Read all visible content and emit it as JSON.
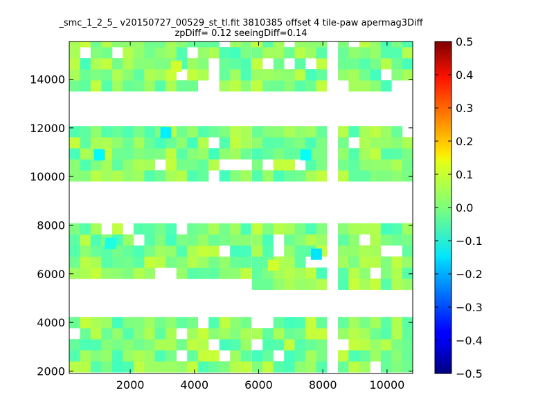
{
  "chart_data": {
    "type": "heatmap",
    "title": "_smc_1_2_5_ v20150727_00529_st_tl.fit 3810385 offset 4 tile-paw apermag3Diff",
    "subtitle": "zpDiff= 0.12 seeingDiff=0.14",
    "xlabel": "",
    "ylabel": "",
    "xlim": [
      100,
      10800
    ],
    "ylim": [
      1900,
      15550
    ],
    "xticks": [
      "2000",
      "4000",
      "6000",
      "8000",
      "10000"
    ],
    "yticks": [
      "2000",
      "4000",
      "6000",
      "8000",
      "10000",
      "12000",
      "14000"
    ],
    "x_tick_values": [
      2000,
      4000,
      6000,
      8000,
      10000
    ],
    "y_tick_values": [
      2000,
      4000,
      6000,
      8000,
      10000,
      12000,
      14000
    ],
    "colorbar": {
      "ticks": [
        "0.5",
        "0.4",
        "0.3",
        "0.2",
        "0.1",
        "0.0",
        "−0.1",
        "−0.2",
        "−0.3",
        "−0.4",
        "−0.5"
      ],
      "tick_values": [
        0.5,
        0.4,
        0.3,
        0.2,
        0.1,
        0.0,
        -0.1,
        -0.2,
        -0.3,
        -0.4,
        -0.5
      ],
      "range": [
        -0.5,
        0.5
      ],
      "colormap": "jet"
    },
    "cell": {
      "dx": 334,
      "dy": 455
    },
    "clusters": [
      {
        "x0": 100,
        "y0": 13500,
        "cols": 8,
        "rows": 5,
        "seed": 1
      },
      {
        "x0": 2770,
        "y0": 13500,
        "cols": 9,
        "rows": 5,
        "seed": 2
      },
      {
        "x0": 5790,
        "y0": 13500,
        "cols": 7,
        "rows": 5,
        "seed": 3
      },
      {
        "x0": 8470,
        "y0": 13500,
        "cols": 7,
        "rows": 5,
        "seed": 4
      },
      {
        "x0": 100,
        "y0": 9800,
        "cols": 8,
        "rows": 5,
        "seed": 5
      },
      {
        "x0": 2770,
        "y0": 9800,
        "cols": 9,
        "rows": 5,
        "seed": 6
      },
      {
        "x0": 5790,
        "y0": 9800,
        "cols": 7,
        "rows": 5,
        "seed": 7
      },
      {
        "x0": 8470,
        "y0": 9800,
        "cols": 7,
        "rows": 5,
        "seed": 8
      },
      {
        "x0": 100,
        "y0": 5800,
        "cols": 8,
        "rows": 5,
        "seed": 9
      },
      {
        "x0": 2770,
        "y0": 5800,
        "cols": 9,
        "rows": 5,
        "seed": 10
      },
      {
        "x0": 5790,
        "y0": 5350,
        "cols": 7,
        "rows": 6,
        "seed": 11
      },
      {
        "x0": 8470,
        "y0": 5350,
        "cols": 7,
        "rows": 6,
        "seed": 12
      },
      {
        "x0": 100,
        "y0": 1950,
        "cols": 8,
        "rows": 5,
        "seed": 13
      },
      {
        "x0": 2770,
        "y0": 1950,
        "cols": 9,
        "rows": 5,
        "seed": 14
      },
      {
        "x0": 5790,
        "y0": 1950,
        "cols": 7,
        "rows": 5,
        "seed": 15
      },
      {
        "x0": 8470,
        "y0": 1950,
        "cols": 7,
        "rows": 5,
        "seed": 16
      }
    ],
    "highlight_cells": [
      {
        "x": 2940,
        "y": 11580,
        "value": -0.14
      },
      {
        "x": 870,
        "y": 10670,
        "value": -0.13
      },
      {
        "x": 7300,
        "y": 10670,
        "value": -0.12
      },
      {
        "x": 7630,
        "y": 6580,
        "value": -0.15
      },
      {
        "x": 1210,
        "y": 7030,
        "value": -0.1
      },
      {
        "x": 6290,
        "y": 6120,
        "value": 0.08
      },
      {
        "x": 3270,
        "y": 14310,
        "value": 0.08
      }
    ]
  }
}
